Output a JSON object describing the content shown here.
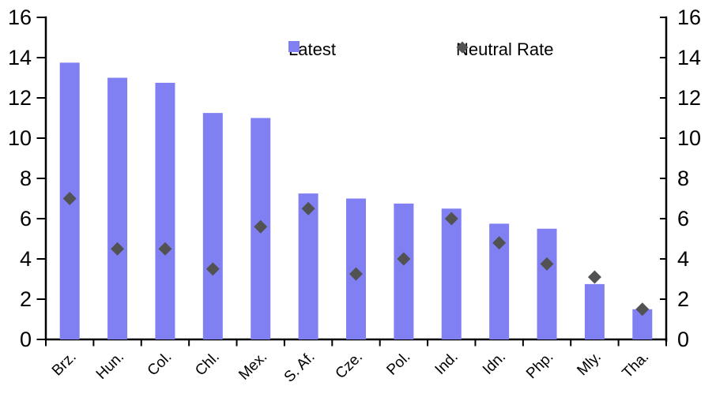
{
  "chart_data": {
    "type": "bar",
    "categories": [
      "Brz.",
      "Hun.",
      "Col.",
      "Chl.",
      "Mex.",
      "S. Af.",
      "Cze.",
      "Pol.",
      "Ind.",
      "Idn.",
      "Php.",
      "Mly.",
      "Tha."
    ],
    "series": [
      {
        "name": "Latest",
        "kind": "bar",
        "color": "#8080F2",
        "values": [
          13.75,
          13.0,
          12.75,
          11.25,
          11.0,
          7.25,
          7.0,
          6.75,
          6.5,
          5.75,
          5.5,
          2.75,
          1.5
        ]
      },
      {
        "name": "Neutral Rate",
        "kind": "diamond-marker",
        "color": "#525252",
        "values": [
          7.0,
          4.5,
          4.5,
          3.5,
          5.6,
          6.5,
          3.25,
          4.0,
          6.0,
          4.8,
          3.75,
          3.1,
          1.5
        ]
      }
    ],
    "ylim": [
      0,
      16
    ],
    "yticks": [
      0,
      2,
      4,
      6,
      8,
      10,
      12,
      14,
      16
    ],
    "yticks_right": [
      0,
      2,
      4,
      6,
      8,
      10,
      12,
      14,
      16
    ],
    "dual_y_axis": true,
    "grid": false,
    "legend_position": "top-center",
    "axis_color": "#000000",
    "x_label_rotation_deg": -45
  }
}
